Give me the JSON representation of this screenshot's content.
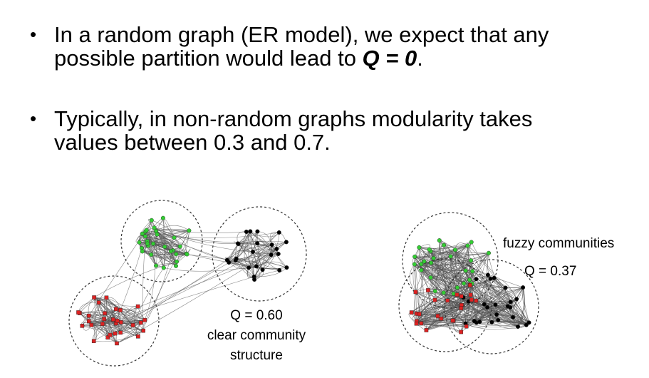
{
  "bullets": [
    {
      "line1": "In a random graph (ER model), we expect that any",
      "line2_prefix": "possible partition would lead to ",
      "line2_emph": "Q = 0",
      "line2_suffix": "."
    },
    {
      "line1": "Typically, in non-random graphs modularity takes",
      "line2": "values between 0.3 and 0.7."
    }
  ],
  "left_graph": {
    "q_value": "Q = 0.60",
    "caption_line1": "clear community",
    "caption_line2": "structure"
  },
  "right_graph": {
    "caption": "fuzzy communities",
    "q_value": "Q = 0.37"
  },
  "colors": {
    "green_nodes": "#33cc33",
    "black_nodes": "#000000",
    "red_nodes": "#dd2222",
    "edges": "#555555"
  }
}
